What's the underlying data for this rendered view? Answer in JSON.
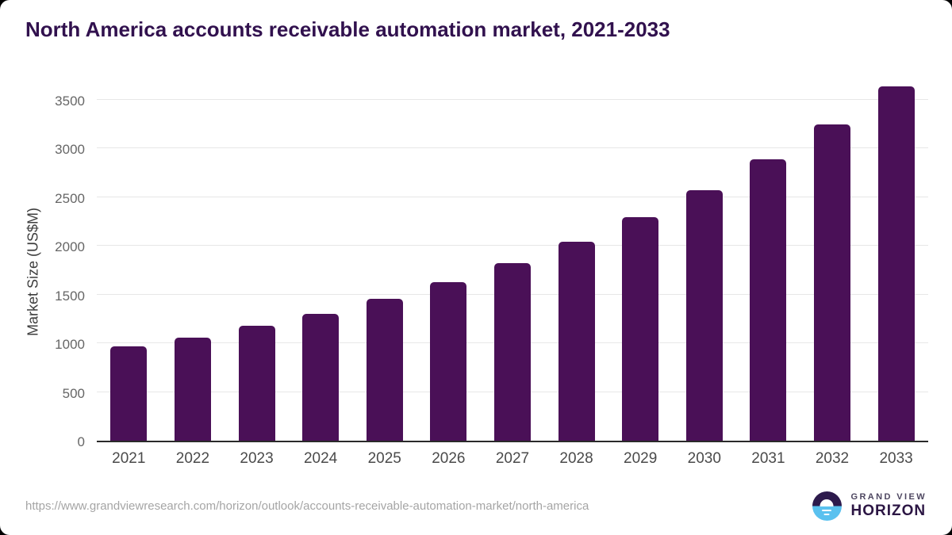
{
  "header": {
    "title": "North America accounts receivable automation market, 2021-2033"
  },
  "chart_data": {
    "type": "bar",
    "title": "North America accounts receivable automation market, 2021-2033",
    "categories": [
      "2021",
      "2022",
      "2023",
      "2024",
      "2025",
      "2026",
      "2027",
      "2028",
      "2029",
      "2030",
      "2031",
      "2032",
      "2033"
    ],
    "values": [
      965,
      1062,
      1180,
      1305,
      1455,
      1625,
      1820,
      2040,
      2295,
      2570,
      2890,
      3245,
      3635
    ],
    "xlabel": "",
    "ylabel": "Market Size (US$M)",
    "ylim": [
      0,
      3500
    ],
    "yticks": [
      0,
      500,
      1000,
      1500,
      2000,
      2500,
      3000,
      3500
    ],
    "grid": "horizontal",
    "legend": "none"
  },
  "colors": {
    "bar": "#4a1057",
    "title_text": "#31114e",
    "axis_line": "#2a2a2a",
    "gridline": "#e7e7e7",
    "ytick_text": "#666666",
    "xtick_text": "#4a4a4a",
    "url_text": "#a5a5a5",
    "logo_top_half": "#2d1a4c",
    "logo_bottom_half": "#5ac1ef",
    "card_background": "#ffffff"
  },
  "footer": {
    "source_url": "https://www.grandviewresearch.com/horizon/outlook/accounts-receivable-automation-market/north-america",
    "brand_line1": "GRAND VIEW",
    "brand_line2": "HORIZON"
  }
}
